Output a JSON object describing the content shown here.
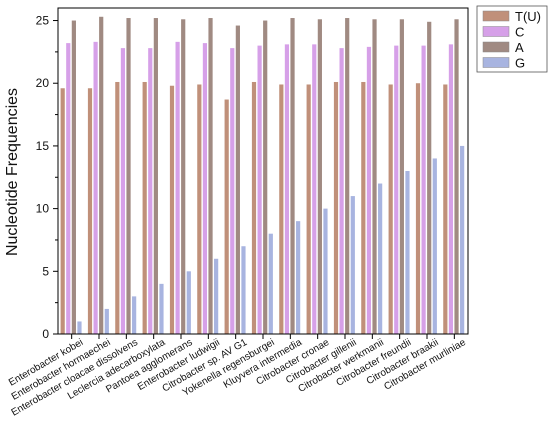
{
  "chart_data": {
    "type": "bar",
    "ylabel": "Nucleotide Frequencies",
    "xlabel": "",
    "ylim": [
      0,
      26
    ],
    "yticks": [
      "0",
      "5",
      "10",
      "15",
      "20",
      "25"
    ],
    "grid": false,
    "legend_position": "top-right, outside plot",
    "categories": [
      "Enterobacter kobei",
      "Enterobacter hormaechei",
      "Enterobacter cloacae dissolvens",
      "Leclercia adecarboxylata",
      "Pantoea agglomerans",
      "Enterobacter ludwigii",
      "Citrobacter sp. AV G1",
      "Yokenella regensburgei",
      "Kluyvera intermedia",
      "Citrobacter cronae",
      "Citrobacter gillenii",
      "Citrobacter werkmanii",
      "Citrobacter freundii",
      "Citrobacter braakii",
      "Citrobacter murliniae"
    ],
    "series": [
      {
        "name": "T(U)",
        "color": "#c0907a",
        "values": [
          19.6,
          19.6,
          20.1,
          20.1,
          19.8,
          19.9,
          18.7,
          20.1,
          19.9,
          19.9,
          20.1,
          20.1,
          19.9,
          20.0,
          19.9
        ]
      },
      {
        "name": "C",
        "color": "#d6a0e8",
        "values": [
          23.2,
          23.3,
          22.8,
          22.8,
          23.3,
          23.2,
          22.8,
          23.0,
          23.1,
          23.1,
          22.8,
          22.9,
          23.0,
          23.0,
          23.1
        ]
      },
      {
        "name": "A",
        "color": "#a08a82",
        "values": [
          25.0,
          25.3,
          25.2,
          25.2,
          25.1,
          25.2,
          24.6,
          25.0,
          25.2,
          25.1,
          25.2,
          25.1,
          25.1,
          24.9,
          25.1
        ]
      },
      {
        "name": "G",
        "color": "#a8b4e0",
        "values": [
          1,
          2,
          3,
          4,
          5,
          6,
          7,
          8,
          9,
          10,
          11,
          12,
          13,
          14,
          15
        ]
      }
    ]
  }
}
